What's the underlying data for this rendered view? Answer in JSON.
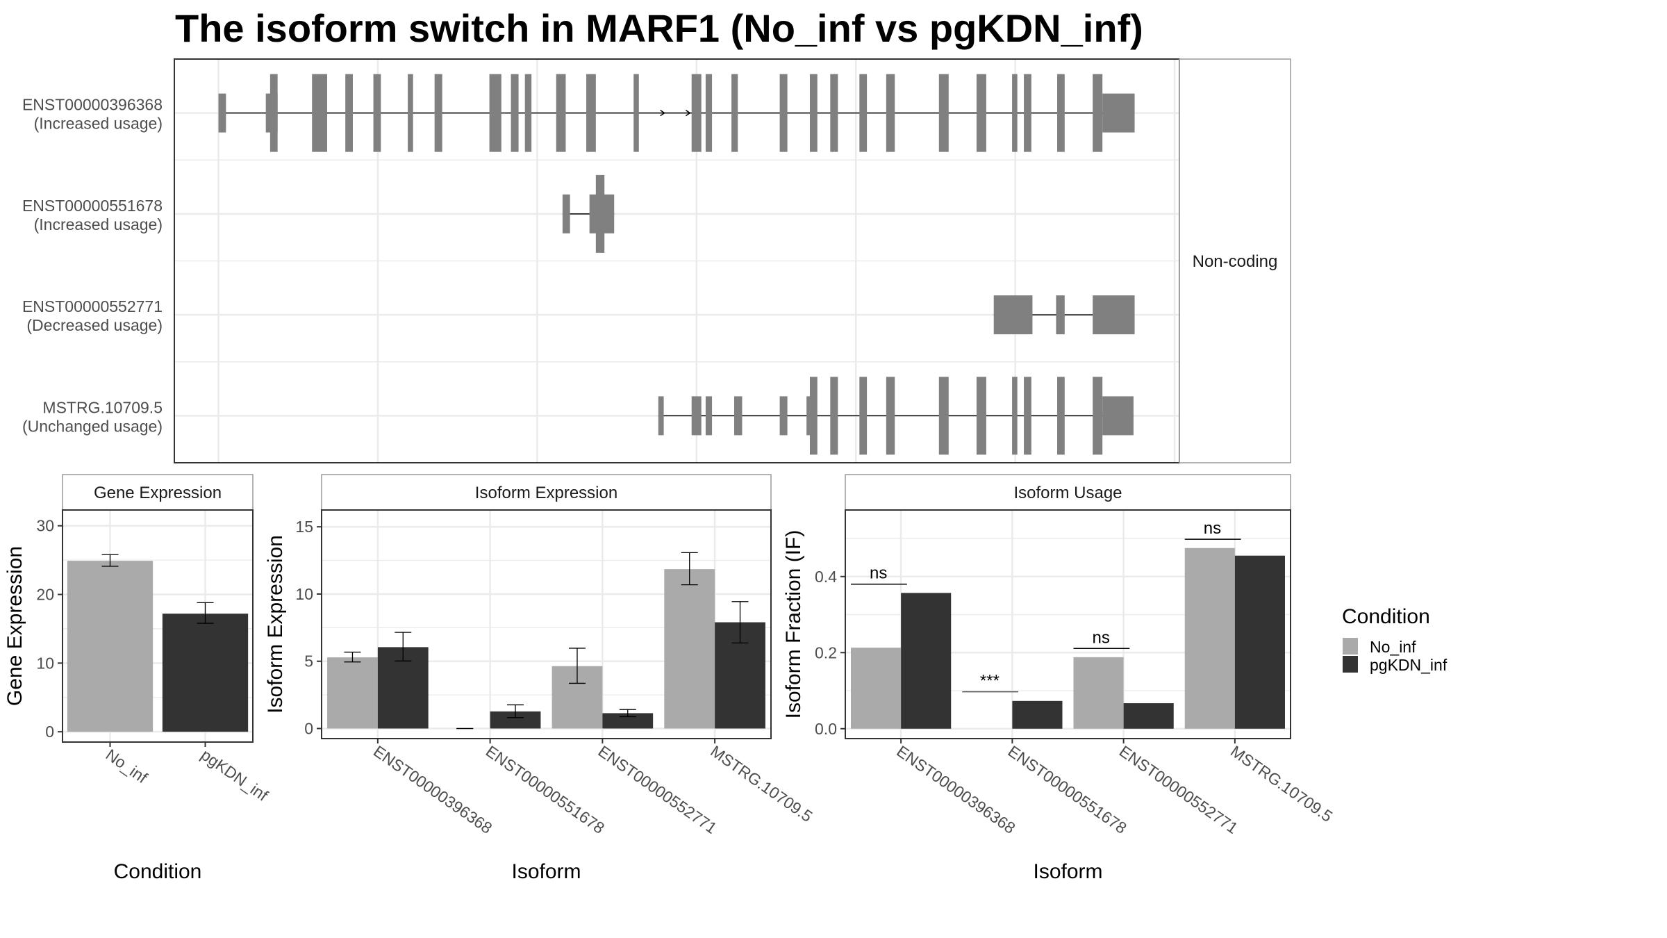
{
  "title": "The isoform switch in MARF1 (No_inf vs pgKDN_inf)",
  "colors": {
    "No_inf": "#aaaaaa",
    "pgKDN_inf": "#333333",
    "exon": "#808080",
    "grid": "#ebebeb",
    "strip_border": "#999999",
    "panel_border": "#333333"
  },
  "chart_data": [
    {
      "type": "transcript-structure",
      "strip_label": "Non-coding",
      "xlim": [
        -27.7,
        603
      ],
      "x_gridlines": [
        0,
        100,
        200,
        300,
        400,
        500,
        600
      ],
      "transcripts": [
        {
          "id": "ENST00000396368",
          "usage": "(Increased usage)",
          "span": [
            2.4,
            574.9
          ],
          "direction_arrows": [
            279,
            295
          ],
          "exons": [
            {
              "start": 0,
              "end": 4.7,
              "kind": "utr"
            },
            {
              "start": 29.7,
              "end": 37.1,
              "kind": "utr"
            },
            {
              "start": 32.4,
              "end": 37.1,
              "kind": "cds"
            },
            {
              "start": 58.7,
              "end": 68.2,
              "kind": "cds"
            },
            {
              "start": 79.6,
              "end": 84.3,
              "kind": "cds"
            },
            {
              "start": 97.2,
              "end": 101.9,
              "kind": "cds"
            },
            {
              "start": 118.8,
              "end": 122.1,
              "kind": "cds"
            },
            {
              "start": 135.6,
              "end": 140.4,
              "kind": "cds"
            },
            {
              "start": 170.0,
              "end": 177.5,
              "kind": "cds"
            },
            {
              "start": 183.5,
              "end": 188.3,
              "kind": "cds"
            },
            {
              "start": 192.3,
              "end": 196.4,
              "kind": "cds"
            },
            {
              "start": 211.9,
              "end": 217.9,
              "kind": "cds"
            },
            {
              "start": 230.8,
              "end": 236.8,
              "kind": "cds"
            },
            {
              "start": 260.5,
              "end": 263.8,
              "kind": "cds"
            },
            {
              "start": 296.9,
              "end": 303.0,
              "kind": "cds"
            },
            {
              "start": 305.7,
              "end": 309.7,
              "kind": "cds"
            },
            {
              "start": 321.9,
              "end": 325.9,
              "kind": "cds"
            },
            {
              "start": 352.2,
              "end": 357.0,
              "kind": "cds"
            },
            {
              "start": 371.1,
              "end": 375.8,
              "kind": "cds"
            },
            {
              "start": 383.9,
              "end": 388.7,
              "kind": "cds"
            },
            {
              "start": 402.2,
              "end": 406.9,
              "kind": "cds"
            },
            {
              "start": 419.0,
              "end": 424.4,
              "kind": "cds"
            },
            {
              "start": 452.1,
              "end": 458.2,
              "kind": "cds"
            },
            {
              "start": 475.7,
              "end": 481.8,
              "kind": "cds"
            },
            {
              "start": 498.0,
              "end": 501.3,
              "kind": "cds"
            },
            {
              "start": 505.4,
              "end": 510.1,
              "kind": "cds"
            },
            {
              "start": 526.3,
              "end": 531.0,
              "kind": "cds"
            },
            {
              "start": 548.6,
              "end": 554.7,
              "kind": "cds"
            },
            {
              "start": 554.7,
              "end": 574.9,
              "kind": "utr"
            }
          ]
        },
        {
          "id": "ENST00000551678",
          "usage": "(Increased usage)",
          "span": [
            218,
            233
          ],
          "direction_arrows": [],
          "exons": [
            {
              "start": 215.9,
              "end": 220.6,
              "kind": "utr"
            },
            {
              "start": 232.8,
              "end": 248.3,
              "kind": "utr"
            },
            {
              "start": 236.8,
              "end": 242.2,
              "kind": "cds"
            }
          ]
        },
        {
          "id": "ENST00000552771",
          "usage": "(Decreased usage)",
          "span": [
            486.5,
            574.9
          ],
          "direction_arrows": [],
          "exons": [
            {
              "start": 486.5,
              "end": 510.8,
              "kind": "utr"
            },
            {
              "start": 525.6,
              "end": 531.0,
              "kind": "utr"
            },
            {
              "start": 548.6,
              "end": 574.9,
              "kind": "utr"
            }
          ]
        },
        {
          "id": "MSTRG.10709.5",
          "usage": "(Unchanged usage)",
          "span": [
            278,
            574.2
          ],
          "direction_arrows": [],
          "exons": [
            {
              "start": 276.0,
              "end": 279.4,
              "kind": "utr"
            },
            {
              "start": 296.9,
              "end": 303.0,
              "kind": "utr"
            },
            {
              "start": 305.7,
              "end": 309.7,
              "kind": "utr"
            },
            {
              "start": 323.6,
              "end": 328.6,
              "kind": "utr"
            },
            {
              "start": 352.2,
              "end": 357.0,
              "kind": "utr"
            },
            {
              "start": 369.0,
              "end": 371.1,
              "kind": "utr"
            },
            {
              "start": 371.1,
              "end": 375.8,
              "kind": "cds"
            },
            {
              "start": 383.9,
              "end": 388.7,
              "kind": "cds"
            },
            {
              "start": 402.2,
              "end": 406.9,
              "kind": "cds"
            },
            {
              "start": 419.0,
              "end": 424.4,
              "kind": "cds"
            },
            {
              "start": 452.1,
              "end": 458.2,
              "kind": "cds"
            },
            {
              "start": 475.7,
              "end": 481.8,
              "kind": "cds"
            },
            {
              "start": 498.0,
              "end": 501.3,
              "kind": "cds"
            },
            {
              "start": 505.4,
              "end": 510.1,
              "kind": "cds"
            },
            {
              "start": 526.3,
              "end": 531.0,
              "kind": "cds"
            },
            {
              "start": 548.6,
              "end": 554.7,
              "kind": "cds"
            },
            {
              "start": 554.7,
              "end": 574.2,
              "kind": "utr"
            }
          ]
        }
      ]
    },
    {
      "type": "bar",
      "strip_label": "Gene Expression",
      "xlabel": "Condition",
      "ylabel": "Gene Expression",
      "categories": [
        "No_inf",
        "pgKDN_inf"
      ],
      "ylim": [
        -1.5,
        32.3
      ],
      "yticks": [
        "0",
        "10",
        "20",
        "30"
      ],
      "ytick_values": [
        0,
        10,
        20,
        30
      ],
      "minor_ticks": [
        5,
        15,
        25
      ],
      "series": [
        {
          "name": "No_inf",
          "values": [
            24.9,
            null
          ],
          "err_low": [
            24.1,
            null
          ],
          "err_high": [
            25.8,
            null
          ]
        },
        {
          "name": "pgKDN_inf",
          "values": [
            null,
            17.2
          ],
          "err_low": [
            null,
            15.8
          ],
          "err_high": [
            null,
            18.8
          ]
        }
      ]
    },
    {
      "type": "bar",
      "strip_label": "Isoform Expression",
      "xlabel": "Isoform",
      "ylabel": "Isoform Expression",
      "categories": [
        "ENST00000396368",
        "ENST00000551678",
        "ENST00000552771",
        "MSTRG.10709.5"
      ],
      "ylim": [
        -0.75,
        16.25
      ],
      "yticks": [
        "0",
        "5",
        "10",
        "15"
      ],
      "ytick_values": [
        0,
        5,
        10,
        15
      ],
      "minor_ticks": [
        2.5,
        7.5,
        12.5
      ],
      "series": [
        {
          "name": "No_inf",
          "values": [
            5.29,
            0.0,
            4.64,
            11.85
          ],
          "err_low": [
            4.95,
            0.0,
            3.36,
            10.69
          ],
          "err_high": [
            5.68,
            0.0,
            5.97,
            13.08
          ]
        },
        {
          "name": "pgKDN_inf",
          "values": [
            6.05,
            1.27,
            1.14,
            7.9
          ],
          "err_low": [
            5.02,
            0.81,
            0.88,
            6.36
          ],
          "err_high": [
            7.15,
            1.76,
            1.41,
            9.44
          ]
        }
      ]
    },
    {
      "type": "bar",
      "strip_label": "Isoform Usage",
      "xlabel": "Isoform",
      "ylabel": "Isoform Fraction (IF)",
      "categories": [
        "ENST00000396368",
        "ENST00000551678",
        "ENST00000552771",
        "MSTRG.10709.5"
      ],
      "ylim": [
        -0.026,
        0.575
      ],
      "yticks": [
        "0.0",
        "0.2",
        "0.4"
      ],
      "ytick_values": [
        0,
        0.2,
        0.4
      ],
      "minor_ticks": [
        0.1,
        0.3,
        0.5
      ],
      "series": [
        {
          "name": "No_inf",
          "values": [
            0.213,
            0.0,
            0.188,
            0.475
          ]
        },
        {
          "name": "pgKDN_inf",
          "values": [
            0.357,
            0.073,
            0.067,
            0.455
          ]
        }
      ],
      "significance": [
        {
          "label": "ns",
          "y": 0.38
        },
        {
          "label": "***",
          "y": 0.097
        },
        {
          "label": "ns",
          "y": 0.211
        },
        {
          "label": "ns",
          "y": 0.498
        }
      ]
    }
  ],
  "legend": {
    "title": "Condition",
    "position": "right",
    "items": [
      {
        "label": "No_inf",
        "color": "#aaaaaa"
      },
      {
        "label": "pgKDN_inf",
        "color": "#333333"
      }
    ]
  }
}
